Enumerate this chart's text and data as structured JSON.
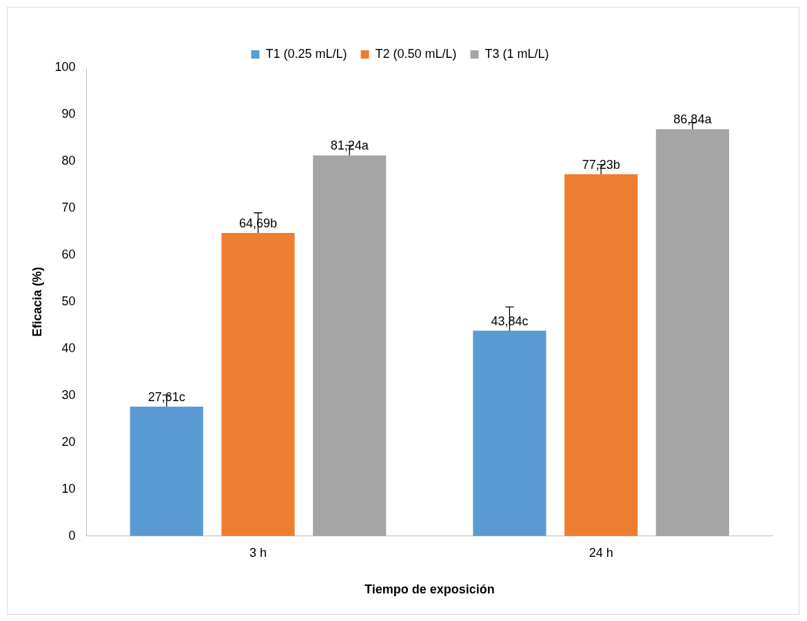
{
  "chart_data": {
    "type": "bar",
    "xlabel": "Tiempo de exposición",
    "ylabel": "Eficacia (%)",
    "categories": [
      "3 h",
      "24 h"
    ],
    "series": [
      {
        "name": "T1 (0.25 mL/L)",
        "color": "#5b9bd5",
        "values": [
          27.61,
          43.84
        ],
        "errors": [
          [
            27.61,
            30.1
          ],
          [
            43.84,
            48.9
          ]
        ],
        "value_labels": [
          "27,61c",
          "43,84c"
        ]
      },
      {
        "name": "T2 (0.50 mL/L)",
        "color": "#ed7d31",
        "values": [
          64.69,
          77.23
        ],
        "errors": [
          [
            64.69,
            69.0
          ],
          [
            77.23,
            79.3
          ]
        ],
        "value_labels": [
          "64,69b",
          "77,23b"
        ]
      },
      {
        "name": "T3 (1 mL/L)",
        "color": "#a5a5a5",
        "values": [
          81.24,
          86.84
        ],
        "errors": [
          [
            81.24,
            83.4
          ],
          [
            86.84,
            88.3
          ]
        ],
        "value_labels": [
          "81,24a",
          "86,84a"
        ]
      }
    ],
    "ylim": [
      0,
      100
    ],
    "yticks": [
      0,
      10,
      20,
      30,
      40,
      50,
      60,
      70,
      80,
      90,
      100
    ],
    "grid": false,
    "legend": "top"
  }
}
